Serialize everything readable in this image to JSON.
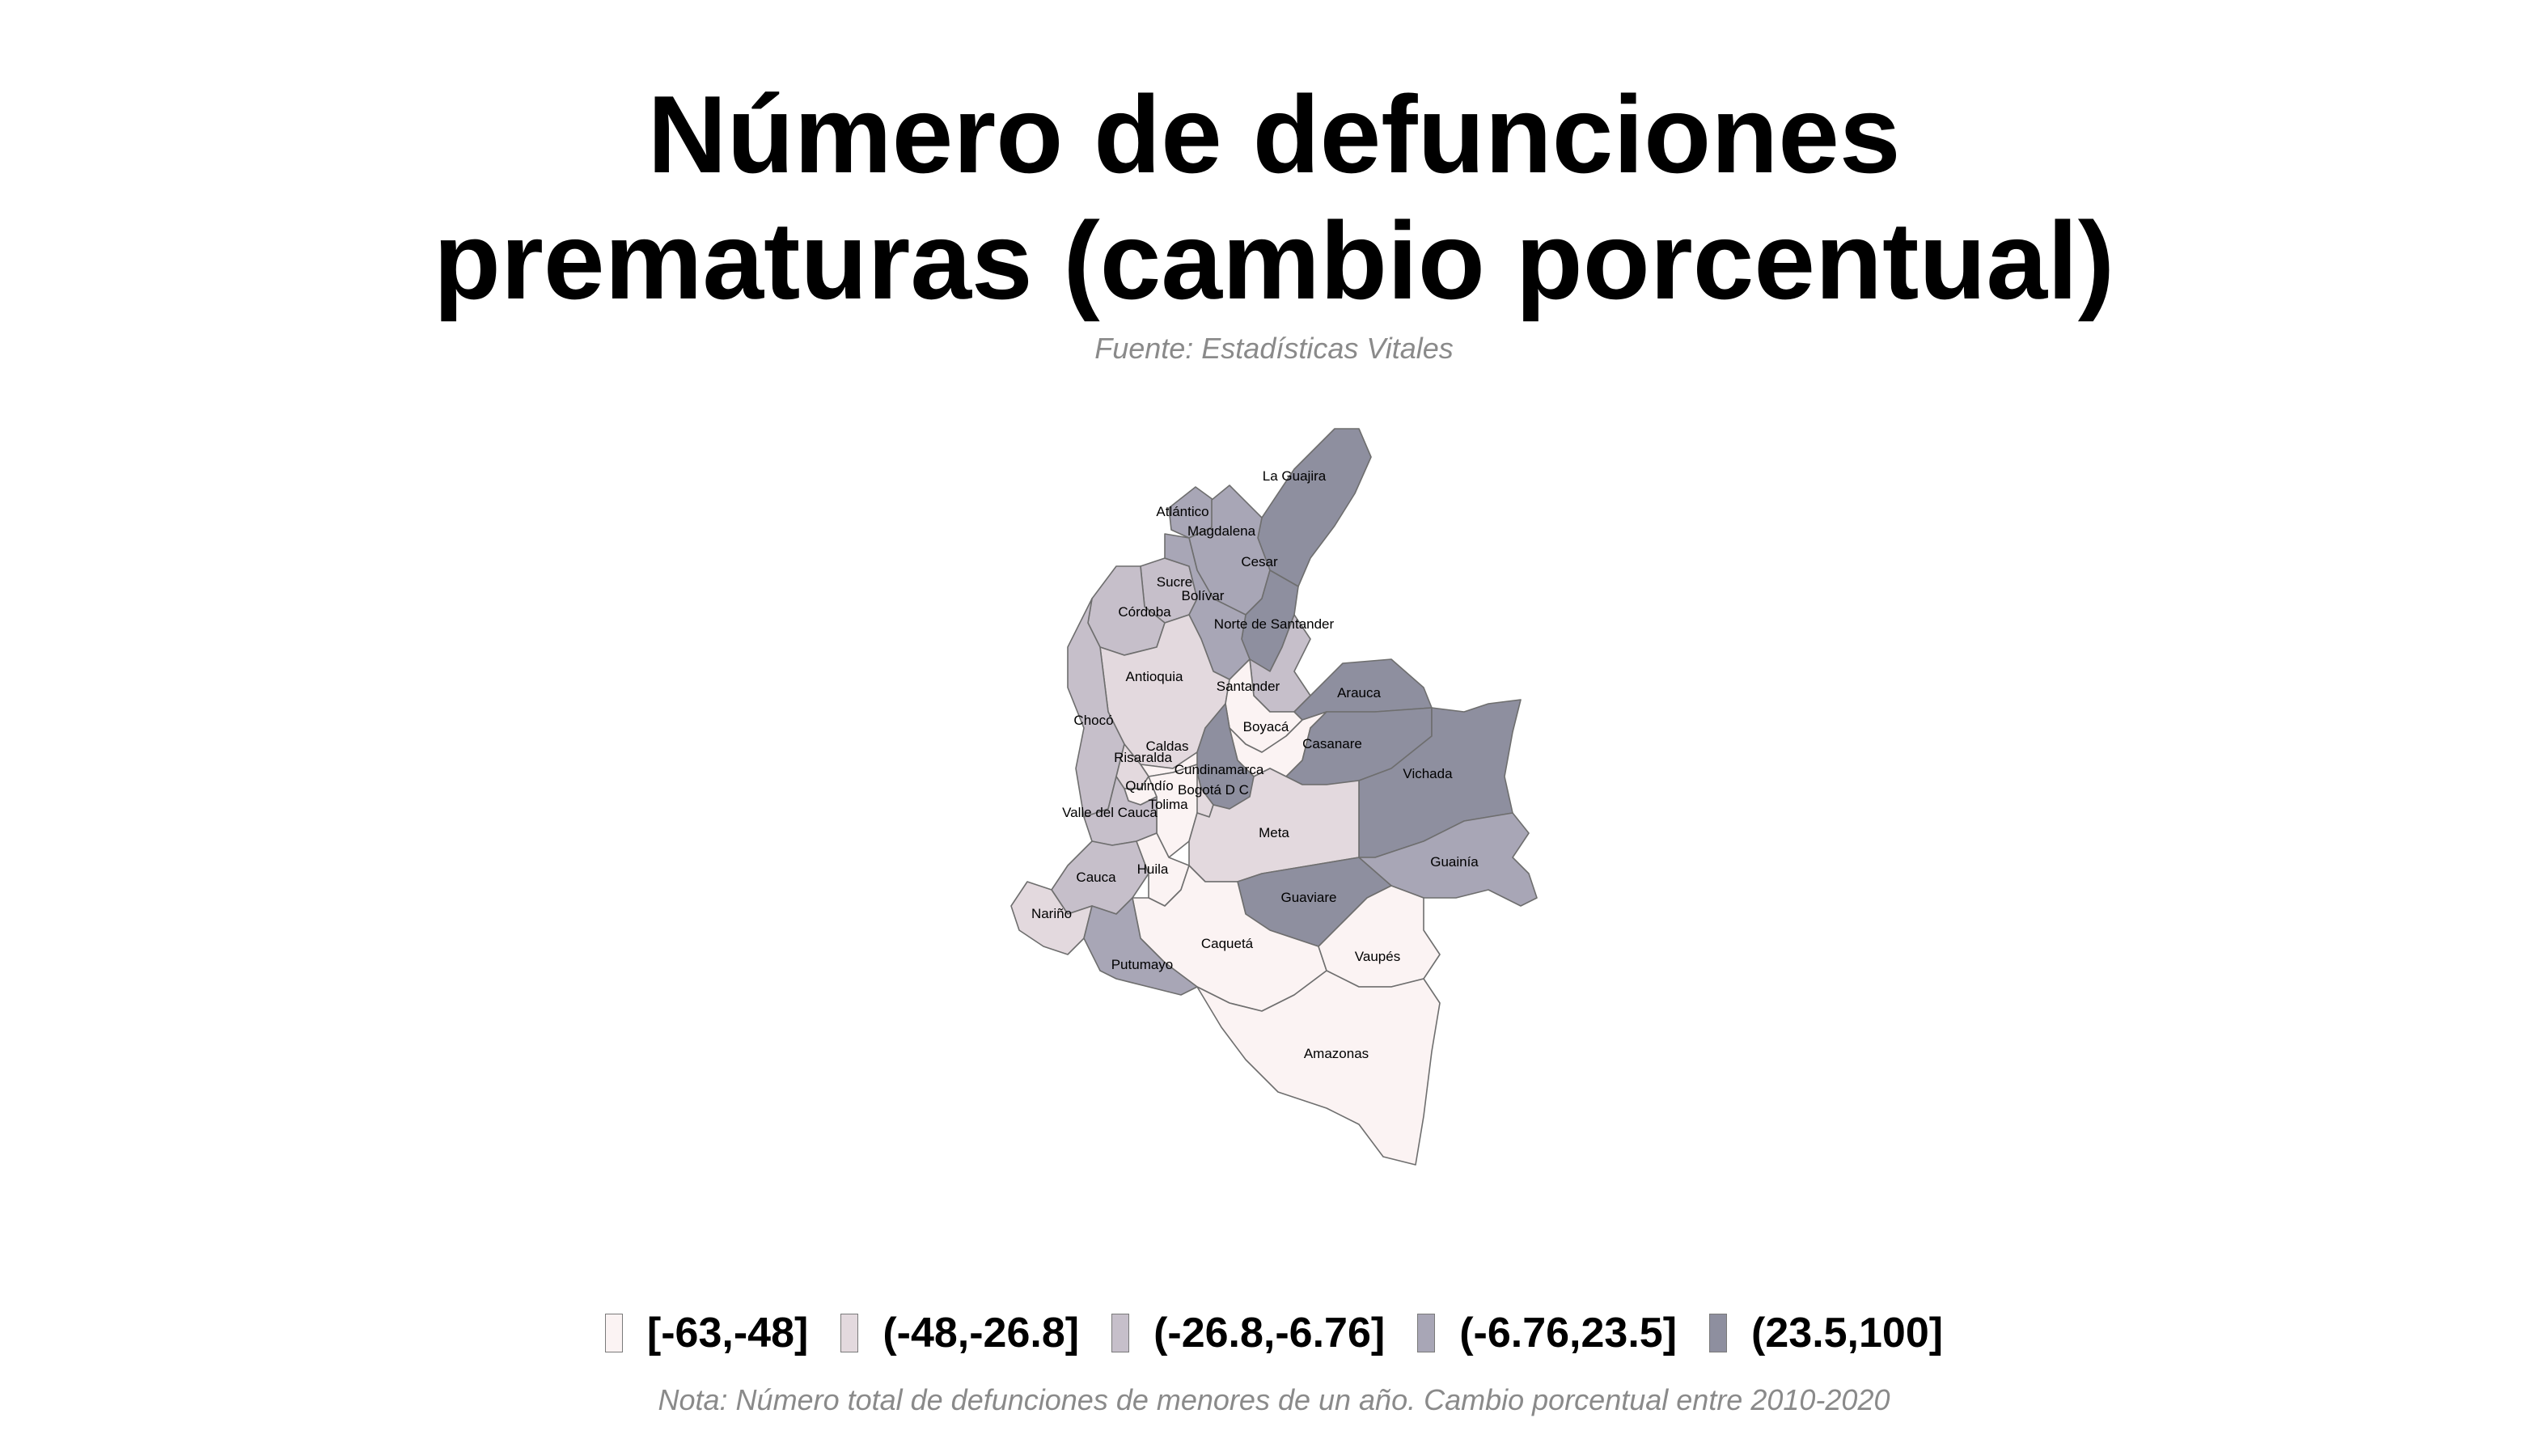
{
  "title_lines": [
    "Número de defunciones",
    "prematuras (cambio porcentual)"
  ],
  "source": "Fuente: Estadísticas Vitales",
  "note": "Nota: Número total de defunciones de menores de un año. Cambio porcentual entre 2010-2020",
  "legend": [
    {
      "label": "[-63,-48]",
      "color": "#fbf3f3"
    },
    {
      "label": "(-48,-26.8]",
      "color": "#e3d9de"
    },
    {
      "label": "(-26.8,-6.76]",
      "color": "#c6bfca"
    },
    {
      "label": "(-6.76,23.5]",
      "color": "#a8a6b6"
    },
    {
      "label": "(23.5,100]",
      "color": "#8e8f9f"
    }
  ],
  "departments": [
    {
      "name": "La Guajira",
      "class": 5
    },
    {
      "name": "Atlántico",
      "class": 4
    },
    {
      "name": "Magdalena",
      "class": 4
    },
    {
      "name": "Cesar",
      "class": 5
    },
    {
      "name": "Sucre",
      "class": 3
    },
    {
      "name": "Bolívar",
      "class": 4
    },
    {
      "name": "Córdoba",
      "class": 3
    },
    {
      "name": "Norte de Santander",
      "class": 3
    },
    {
      "name": "Antioquia",
      "class": 2
    },
    {
      "name": "Santander",
      "class": 1
    },
    {
      "name": "Arauca",
      "class": 5
    },
    {
      "name": "Chocó",
      "class": 3
    },
    {
      "name": "Boyacá",
      "class": 1
    },
    {
      "name": "Casanare",
      "class": 5
    },
    {
      "name": "Caldas",
      "class": 1
    },
    {
      "name": "Risaralda",
      "class": 2
    },
    {
      "name": "Cundinamarca",
      "class": 5
    },
    {
      "name": "Vichada",
      "class": 5
    },
    {
      "name": "Quindío",
      "class": 1
    },
    {
      "name": "Tolima",
      "class": 1
    },
    {
      "name": "Bogotá D C",
      "class": 2
    },
    {
      "name": "Valle del Cauca",
      "class": 3
    },
    {
      "name": "Meta",
      "class": 2
    },
    {
      "name": "Guainía",
      "class": 4
    },
    {
      "name": "Cauca",
      "class": 3
    },
    {
      "name": "Huila",
      "class": 1
    },
    {
      "name": "Nariño",
      "class": 2
    },
    {
      "name": "Guaviare",
      "class": 5
    },
    {
      "name": "Caquetá",
      "class": 1
    },
    {
      "name": "Vaupés",
      "class": 1
    },
    {
      "name": "Putumayo",
      "class": 4
    },
    {
      "name": "Amazonas",
      "class": 1
    }
  ]
}
